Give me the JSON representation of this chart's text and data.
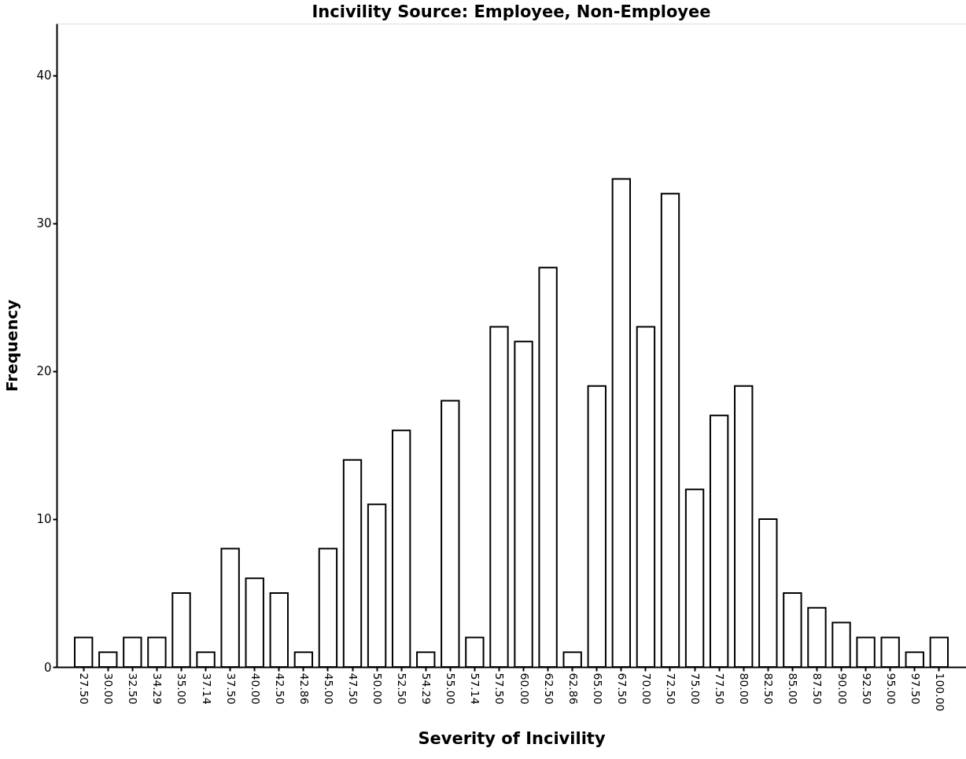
{
  "chart_data": {
    "type": "bar",
    "title": "Incivility Source: Employee, Non-Employee",
    "xlabel": "Severity of Incivility",
    "ylabel": "Frequency",
    "categories": [
      "27.50",
      "30.00",
      "32.50",
      "34.29",
      "35.00",
      "37.14",
      "37.50",
      "40.00",
      "42.50",
      "42.86",
      "45.00",
      "47.50",
      "50.00",
      "52.50",
      "54.29",
      "55.00",
      "57.14",
      "57.50",
      "60.00",
      "62.50",
      "62.86",
      "65.00",
      "67.50",
      "70.00",
      "72.50",
      "75.00",
      "77.50",
      "80.00",
      "82.50",
      "85.00",
      "87.50",
      "90.00",
      "92.50",
      "95.00",
      "97.50",
      "100.00"
    ],
    "values": [
      2,
      1,
      2,
      2,
      5,
      1,
      8,
      6,
      5,
      1,
      8,
      14,
      11,
      16,
      1,
      18,
      2,
      23,
      22,
      27,
      1,
      19,
      33,
      23,
      32,
      12,
      17,
      19,
      10,
      5,
      4,
      3,
      2,
      2,
      1,
      2
    ],
    "color": "#ffffff",
    "ylim": [
      0,
      43.5
    ],
    "yticks": [
      0,
      10,
      20,
      30,
      40
    ],
    "grid": false
  }
}
